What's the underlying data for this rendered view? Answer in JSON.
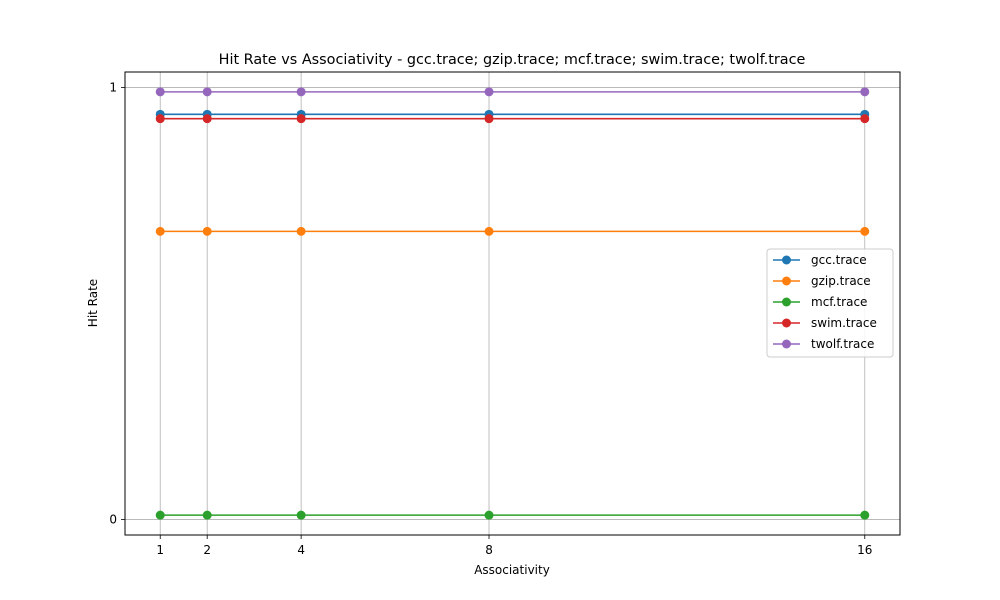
{
  "chart_data": {
    "type": "line",
    "title": "Hit Rate vs Associativity - gcc.trace; gzip.trace; mcf.trace; swim.trace; twolf.trace",
    "xlabel": "Associativity",
    "ylabel": "Hit Rate",
    "x": [
      1,
      2,
      4,
      8,
      16
    ],
    "xticks": [
      "1",
      "2",
      "4",
      "8",
      "16"
    ],
    "yticks": [
      "0",
      "1"
    ],
    "xlim": [
      0.25,
      16.75
    ],
    "ylim": [
      -0.036,
      1.036
    ],
    "grid": true,
    "legend_position": "center-right",
    "series": [
      {
        "name": "gcc.trace",
        "color": "#1f77b4",
        "values": [
          0.938,
          0.938,
          0.938,
          0.938,
          0.938
        ]
      },
      {
        "name": "gzip.trace",
        "color": "#ff7f0e",
        "values": [
          0.667,
          0.667,
          0.667,
          0.667,
          0.667
        ]
      },
      {
        "name": "mcf.trace",
        "color": "#2ca02c",
        "values": [
          0.01,
          0.01,
          0.01,
          0.01,
          0.01
        ]
      },
      {
        "name": "swim.trace",
        "color": "#d62728",
        "values": [
          0.928,
          0.928,
          0.928,
          0.928,
          0.928
        ]
      },
      {
        "name": "twolf.trace",
        "color": "#9467bd",
        "values": [
          0.99,
          0.99,
          0.99,
          0.99,
          0.99
        ]
      }
    ]
  }
}
